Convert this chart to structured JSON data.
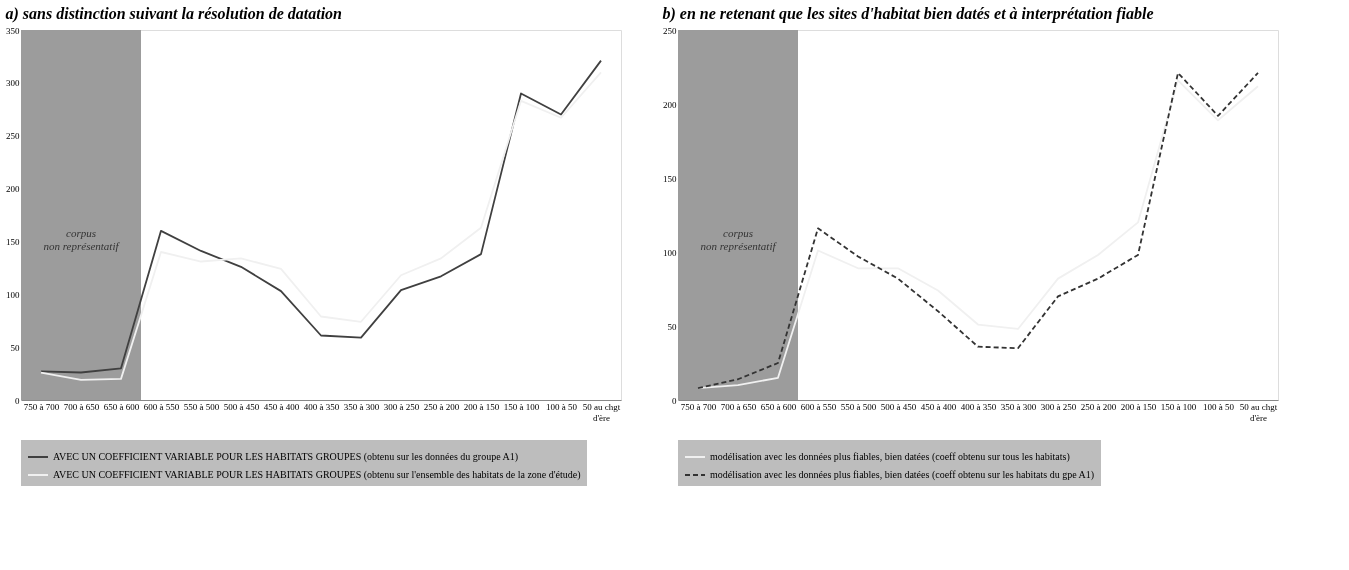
{
  "chart_data": [
    {
      "type": "line",
      "title": "a) sans distinction suivant la résolution de datation",
      "categories": [
        "750 à 700",
        "700 à 650",
        "650 à 600",
        "600 à 550",
        "550 à 500",
        "500 à 450",
        "450 à 400",
        "400 à 350",
        "350 à 300",
        "300 à 250",
        "250 à 200",
        "200 à 150",
        "150 à 100",
        "100 à 50",
        "50 au chgt\nd'ère"
      ],
      "series": [
        {
          "name": "AVEC UN COEFFICIENT VARIABLE POUR LES HABITATS GROUPES (obtenu sur les données du groupe A1)",
          "color": "#404040",
          "line_style": "solid",
          "values": [
            27,
            26,
            30,
            160,
            141,
            126,
            103,
            61,
            59,
            104,
            117,
            138,
            290,
            270,
            321
          ]
        },
        {
          "name": "AVEC UN COEFFICIENT VARIABLE POUR LES HABITATS GROUPES (obtenu sur l'ensemble des habitats de la zone d'étude)",
          "color": "#f0f0f0",
          "line_style": "solid",
          "values": [
            26,
            19,
            20,
            140,
            131,
            134,
            124,
            79,
            74,
            118,
            134,
            163,
            283,
            267,
            310
          ]
        }
      ],
      "ylim": [
        0,
        350
      ],
      "yticks": [
        0,
        50,
        100,
        150,
        200,
        250,
        300,
        350
      ],
      "bands": [
        {
          "axis": "x",
          "from": "750 à 700",
          "to": "650 à 600",
          "label": "corpus\nnon représentatif",
          "color": "#9c9c9c"
        }
      ],
      "grid": false,
      "legend": "bottom"
    },
    {
      "type": "line",
      "title": "b) en ne retenant que les sites d'habitat bien datés et à interprétation fiable",
      "categories": [
        "750 à 700",
        "700 à 650",
        "650 à 600",
        "600 à 550",
        "550 à 500",
        "500 à 450",
        "450 à 400",
        "400 à 350",
        "350 à 300",
        "300 à 250",
        "250 à 200",
        "200 à 150",
        "150 à 100",
        "100 à 50",
        "50 au chgt\nd'ère"
      ],
      "series": [
        {
          "name": "modélisation avec les données plus fiables, bien datées (coeff obtenu sur tous les habitats)",
          "color": "#f0f0f0",
          "line_style": "solid",
          "values": [
            8,
            10,
            15,
            101,
            89,
            89,
            74,
            51,
            48,
            82,
            98,
            120,
            216,
            189,
            212
          ]
        },
        {
          "name": "modélisation avec les données plus fiables, bien datées (coeff obtenu sur les habitats du gpe A1)",
          "color": "#333333",
          "line_style": "dashed",
          "values": [
            8,
            14,
            25,
            116,
            97,
            82,
            60,
            36,
            35,
            70,
            82,
            98,
            221,
            192,
            221
          ]
        }
      ],
      "ylim": [
        0,
        250
      ],
      "yticks": [
        0,
        50,
        100,
        150,
        200,
        250
      ],
      "bands": [
        {
          "axis": "x",
          "from": "750 à 700",
          "to": "650 à 600",
          "label": "corpus\nnon représentatif",
          "color": "#9c9c9c"
        }
      ],
      "grid": false,
      "legend": "bottom"
    }
  ]
}
